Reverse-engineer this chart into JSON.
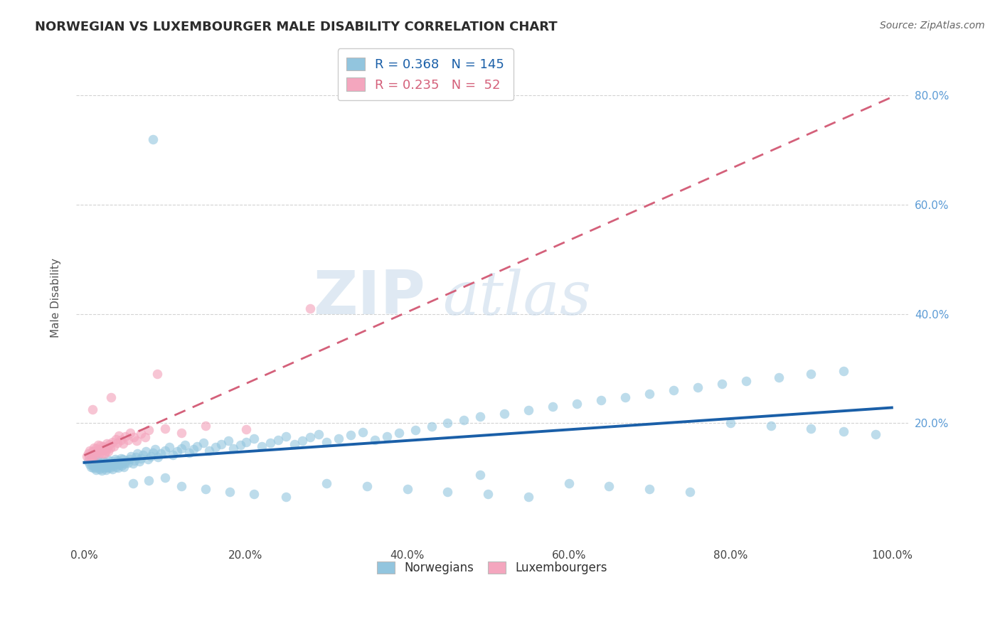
{
  "title": "NORWEGIAN VS LUXEMBOURGER MALE DISABILITY CORRELATION CHART",
  "source": "Source: ZipAtlas.com",
  "ylabel": "Male Disability",
  "watermark_part1": "ZIP",
  "watermark_part2": "atlas",
  "legend_labels": [
    "Norwegians",
    "Luxembourgers"
  ],
  "norwegian_R": 0.368,
  "norwegian_N": 145,
  "luxembourger_R": 0.235,
  "luxembourger_N": 52,
  "xlim": [
    -0.01,
    1.02
  ],
  "ylim": [
    -0.02,
    0.88
  ],
  "xtick_positions": [
    0.0,
    0.2,
    0.4,
    0.6,
    0.8,
    1.0
  ],
  "ytick_positions": [
    0.2,
    0.4,
    0.6,
    0.8
  ],
  "xtick_labels": [
    "0.0%",
    "20.0%",
    "40.0%",
    "60.0%",
    "80.0%",
    "100.0%"
  ],
  "ytick_labels": [
    "20.0%",
    "40.0%",
    "60.0%",
    "80.0%"
  ],
  "norwegian_color": "#92c5de",
  "luxembourger_color": "#f4a6be",
  "trend_norwegian_color": "#1a5fa8",
  "trend_luxembourger_color": "#d4607a",
  "background_color": "#ffffff",
  "grid_color": "#cccccc",
  "title_color": "#2c2c2c",
  "tick_color_right": "#5b9bd5",
  "tick_color_x": "#444444",
  "legend_R_nor_color": "#1a5fa8",
  "legend_R_lux_color": "#d4607a",
  "nor_x": [
    0.005,
    0.007,
    0.008,
    0.009,
    0.01,
    0.01,
    0.011,
    0.012,
    0.013,
    0.014,
    0.015,
    0.015,
    0.016,
    0.017,
    0.018,
    0.019,
    0.02,
    0.02,
    0.021,
    0.022,
    0.023,
    0.024,
    0.025,
    0.025,
    0.026,
    0.027,
    0.028,
    0.029,
    0.03,
    0.03,
    0.031,
    0.032,
    0.033,
    0.034,
    0.035,
    0.036,
    0.037,
    0.038,
    0.039,
    0.04,
    0.041,
    0.042,
    0.043,
    0.044,
    0.045,
    0.046,
    0.047,
    0.048,
    0.049,
    0.05,
    0.052,
    0.054,
    0.056,
    0.058,
    0.06,
    0.062,
    0.064,
    0.066,
    0.068,
    0.07,
    0.073,
    0.076,
    0.079,
    0.082,
    0.085,
    0.088,
    0.091,
    0.095,
    0.1,
    0.105,
    0.11,
    0.115,
    0.12,
    0.125,
    0.13,
    0.135,
    0.14,
    0.148,
    0.155,
    0.163,
    0.17,
    0.178,
    0.185,
    0.193,
    0.2,
    0.21,
    0.22,
    0.23,
    0.24,
    0.25,
    0.26,
    0.27,
    0.28,
    0.29,
    0.3,
    0.315,
    0.33,
    0.345,
    0.36,
    0.375,
    0.39,
    0.41,
    0.43,
    0.45,
    0.47,
    0.49,
    0.52,
    0.55,
    0.58,
    0.61,
    0.64,
    0.67,
    0.7,
    0.73,
    0.76,
    0.79,
    0.82,
    0.86,
    0.9,
    0.94,
    0.06,
    0.08,
    0.1,
    0.12,
    0.15,
    0.18,
    0.21,
    0.25,
    0.3,
    0.35,
    0.4,
    0.45,
    0.5,
    0.55,
    0.6,
    0.65,
    0.7,
    0.75,
    0.8,
    0.85,
    0.9,
    0.94,
    0.98,
    0.085,
    0.49
  ],
  "nor_y": [
    0.13,
    0.125,
    0.12,
    0.135,
    0.128,
    0.122,
    0.118,
    0.13,
    0.124,
    0.119,
    0.115,
    0.128,
    0.132,
    0.126,
    0.121,
    0.116,
    0.125,
    0.13,
    0.119,
    0.114,
    0.124,
    0.13,
    0.118,
    0.123,
    0.128,
    0.115,
    0.12,
    0.126,
    0.133,
    0.119,
    0.124,
    0.118,
    0.125,
    0.13,
    0.116,
    0.122,
    0.128,
    0.134,
    0.12,
    0.126,
    0.132,
    0.118,
    0.124,
    0.13,
    0.136,
    0.122,
    0.128,
    0.134,
    0.12,
    0.126,
    0.132,
    0.128,
    0.134,
    0.14,
    0.126,
    0.132,
    0.138,
    0.144,
    0.13,
    0.136,
    0.142,
    0.148,
    0.134,
    0.14,
    0.146,
    0.152,
    0.138,
    0.144,
    0.15,
    0.156,
    0.142,
    0.148,
    0.154,
    0.16,
    0.146,
    0.152,
    0.158,
    0.164,
    0.15,
    0.156,
    0.162,
    0.168,
    0.154,
    0.16,
    0.166,
    0.172,
    0.158,
    0.164,
    0.17,
    0.176,
    0.162,
    0.168,
    0.174,
    0.18,
    0.166,
    0.172,
    0.178,
    0.184,
    0.17,
    0.176,
    0.182,
    0.188,
    0.194,
    0.2,
    0.206,
    0.212,
    0.218,
    0.224,
    0.23,
    0.236,
    0.242,
    0.248,
    0.254,
    0.26,
    0.266,
    0.272,
    0.278,
    0.284,
    0.29,
    0.296,
    0.09,
    0.095,
    0.1,
    0.085,
    0.08,
    0.075,
    0.07,
    0.065,
    0.09,
    0.085,
    0.08,
    0.075,
    0.07,
    0.065,
    0.09,
    0.085,
    0.08,
    0.075,
    0.2,
    0.195,
    0.19,
    0.185,
    0.18,
    0.72,
    0.105
  ],
  "lux_x": [
    0.003,
    0.005,
    0.006,
    0.007,
    0.008,
    0.009,
    0.01,
    0.01,
    0.011,
    0.012,
    0.013,
    0.014,
    0.015,
    0.016,
    0.017,
    0.018,
    0.019,
    0.02,
    0.021,
    0.022,
    0.023,
    0.024,
    0.025,
    0.026,
    0.027,
    0.028,
    0.029,
    0.03,
    0.031,
    0.032,
    0.033,
    0.035,
    0.037,
    0.039,
    0.041,
    0.043,
    0.045,
    0.048,
    0.051,
    0.054,
    0.057,
    0.061,
    0.065,
    0.07,
    0.075,
    0.08,
    0.09,
    0.1,
    0.12,
    0.15,
    0.2,
    0.28
  ],
  "lux_y": [
    0.14,
    0.145,
    0.138,
    0.15,
    0.143,
    0.136,
    0.148,
    0.225,
    0.142,
    0.155,
    0.148,
    0.141,
    0.154,
    0.147,
    0.16,
    0.153,
    0.146,
    0.159,
    0.152,
    0.145,
    0.158,
    0.151,
    0.144,
    0.157,
    0.15,
    0.163,
    0.156,
    0.149,
    0.162,
    0.155,
    0.248,
    0.165,
    0.158,
    0.171,
    0.164,
    0.177,
    0.17,
    0.163,
    0.176,
    0.169,
    0.182,
    0.175,
    0.168,
    0.181,
    0.174,
    0.187,
    0.29,
    0.19,
    0.183,
    0.196,
    0.189,
    0.41
  ]
}
